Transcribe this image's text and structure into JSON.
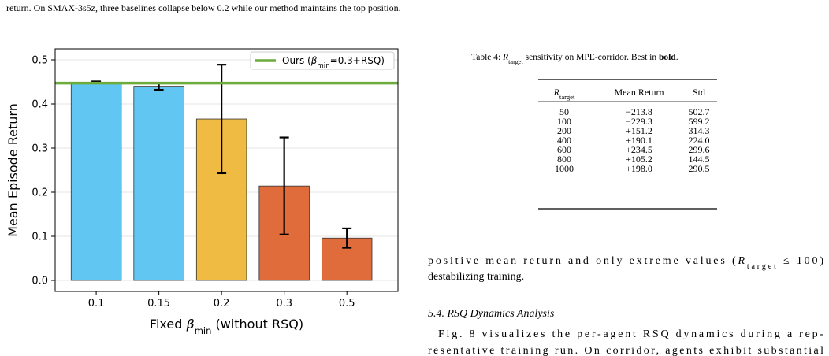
{
  "top_text": "return. On SMAX-3s5z, three baselines collapse below 0.2 while our method maintains the top position.",
  "chart_data": {
    "type": "bar",
    "y_label": "Mean Episode Return",
    "x_label": [
      {
        "text": "Fixed "
      },
      {
        "text": "β",
        "italic": true
      },
      {
        "text": "min",
        "sub": true
      },
      {
        "text": " (without RSQ)"
      }
    ],
    "categories": [
      "0.1",
      "0.15",
      "0.2",
      "0.3",
      "0.5"
    ],
    "values": [
      0.449,
      0.44,
      0.366,
      0.214,
      0.096
    ],
    "errors": [
      0.002,
      0.008,
      0.123,
      0.11,
      0.022
    ],
    "colors": [
      "#62c6f2",
      "#62c6f2",
      "#f0bb42",
      "#e06b3b",
      "#e06b3b"
    ],
    "ylim": [
      -0.025,
      0.525
    ],
    "yticks": [
      {
        "value": 0,
        "label": "0.0"
      },
      0.1,
      0.2,
      0.3,
      0.4,
      0.5
    ],
    "grid": true,
    "reference_line": {
      "value": 0.447,
      "color": "#6cab3c",
      "label": [
        {
          "text": "Ours ("
        },
        {
          "text": "β",
          "italic": true
        },
        {
          "text": "min",
          "sub": true
        },
        {
          "text": "=0.3+RSQ)"
        }
      ]
    },
    "legend": "upper right"
  },
  "table": {
    "caption": [
      {
        "text": "Table 4: "
      },
      {
        "text": "R",
        "italic": true
      },
      {
        "text": "target",
        "sub": true
      },
      {
        "text": " sensitivity on MPE-corridor. Best in "
      },
      {
        "text": "bold",
        "bold": true
      },
      {
        "text": "."
      }
    ],
    "header": [
      [
        {
          "text": "R",
          "italic": true
        },
        {
          "text": "target",
          "sub": true
        }
      ],
      [
        {
          "text": "Mean Return"
        }
      ],
      [
        {
          "text": "Std"
        }
      ]
    ],
    "rows": [
      [
        "50",
        "−213.8",
        "502.7"
      ],
      [
        "100",
        "−229.3",
        "599.2"
      ],
      [
        "200",
        "+151.2",
        "314.3"
      ],
      [
        "400",
        "+190.1",
        "224.0"
      ],
      [
        "600",
        "+234.5",
        "299.6"
      ],
      [
        "800",
        "+105.2",
        "144.5"
      ],
      [
        "1000",
        "+198.0",
        "290.5"
      ]
    ]
  },
  "body": [
    [
      {
        "text": "positive mean return and only extreme values ("
      },
      {
        "text": "R",
        "italic": true
      },
      {
        "text": "target",
        "sub": true
      },
      {
        "text": " ≤ 100)"
      }
    ],
    [
      {
        "text": "destabilizing training."
      }
    ],
    [
      {
        "text": "5.4.  RSQ Dynamics Analysis",
        "italic": true
      }
    ],
    [
      {
        "text": "Fig. 8 visualizes the per-agent RSQ dynamics during a rep-"
      }
    ],
    [
      {
        "text": "resentative training run. On corridor, agents exhibit substantial"
      }
    ]
  ]
}
